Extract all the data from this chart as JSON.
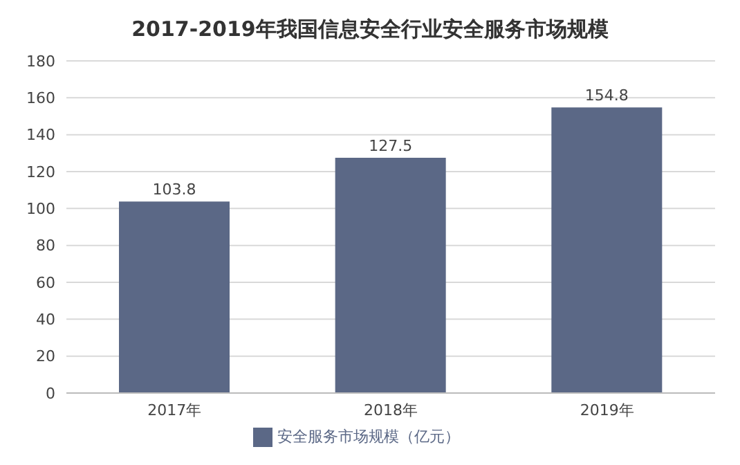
{
  "chart_data": {
    "type": "bar",
    "title": "2017-2019年我国信息安全行业安全服务市场规模",
    "categories": [
      "2017年",
      "2018年",
      "2019年"
    ],
    "series": [
      {
        "name": "安全服务市场规模（亿元）",
        "color": "#5b6886",
        "values": [
          103.8,
          127.5,
          154.8
        ]
      }
    ],
    "ylim": [
      0,
      180
    ],
    "yticks": [
      0,
      20,
      40,
      60,
      80,
      100,
      120,
      140,
      160,
      180
    ],
    "grid": "y",
    "legend": "bottom",
    "data_labels": true
  }
}
